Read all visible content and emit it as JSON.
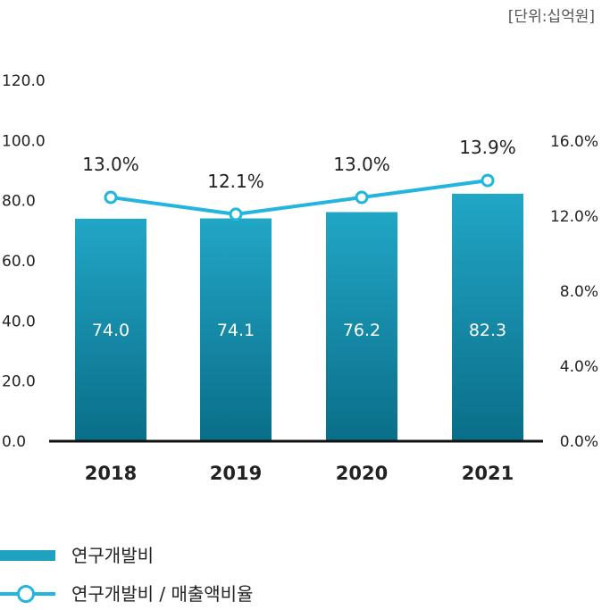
{
  "unit_label": "[단위:십억원]",
  "legend": {
    "bar_label": "연구개발비",
    "line_label": "연구개발비 / 매출액비율"
  },
  "colors": {
    "bar_top": "#21a6c6",
    "bar_bottom": "#0a6e88",
    "line": "#23b5e0",
    "axis": "#111111"
  },
  "chart_data": {
    "type": "bar",
    "categories": [
      "2018",
      "2019",
      "2020",
      "2021"
    ],
    "series": [
      {
        "name": "연구개발비",
        "type": "bar",
        "axis": "left",
        "values": [
          74.0,
          74.1,
          76.2,
          82.3
        ],
        "labels": [
          "74.0",
          "74.1",
          "76.2",
          "82.3"
        ]
      },
      {
        "name": "연구개발비 / 매출액비율",
        "type": "line",
        "axis": "right",
        "values": [
          13.0,
          12.1,
          13.0,
          13.9
        ],
        "labels": [
          "13.0%",
          "12.1%",
          "13.0%",
          "13.9%"
        ]
      }
    ],
    "y_left": {
      "ticks": [
        "0.0",
        "20.0",
        "40.0",
        "60.0",
        "80.0",
        "100.0",
        "120.0"
      ],
      "ylim": [
        0,
        120
      ]
    },
    "y_right": {
      "ticks": [
        "0.0%",
        "4.0%",
        "8.0%",
        "12.0%",
        "16.0%"
      ],
      "ylim": [
        0,
        16
      ]
    },
    "legend_position": "bottom-left",
    "grid": false
  }
}
